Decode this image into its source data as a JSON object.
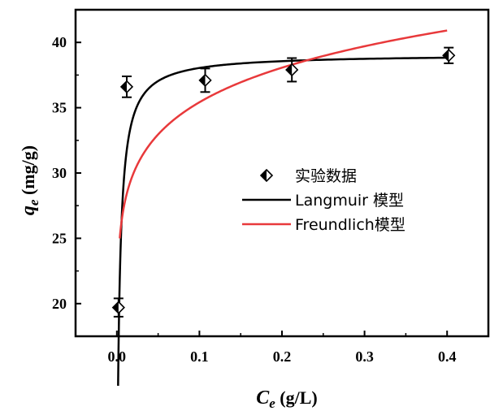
{
  "chart_data": {
    "type": "scatter",
    "xlabel": {
      "main": "C",
      "sub": "e",
      "unit": " (g/L)"
    },
    "ylabel": {
      "main": "q",
      "sub": "e",
      "unit": " (mg/g)"
    },
    "xlim": [
      -0.05,
      0.45
    ],
    "ylim": [
      17.5,
      42.5
    ],
    "xticks": [
      0.0,
      0.1,
      0.2,
      0.3,
      0.4
    ],
    "xtick_labels": [
      "0.0",
      "0.1",
      "0.2",
      "0.3",
      "0.4"
    ],
    "yticks": [
      20,
      25,
      30,
      35,
      40
    ],
    "ytick_labels": [
      "20",
      "25",
      "30",
      "35",
      "40"
    ],
    "grid": false,
    "legend_position": "center-right",
    "series": [
      {
        "name": "实验数据",
        "kind": "points",
        "color": "#000000",
        "marker": "half-filled-diamond",
        "x": [
          0.002,
          0.012,
          0.107,
          0.212,
          0.402
        ],
        "y": [
          19.7,
          36.6,
          37.1,
          37.9,
          39.0
        ],
        "err": [
          0.7,
          0.8,
          0.9,
          0.9,
          0.6
        ]
      },
      {
        "name": "Langmuir 模型",
        "kind": "line",
        "color": "#000000",
        "model": "langmuir",
        "params": {
          "qm": 39.1,
          "K": 360
        },
        "x_range": [
          0.0015,
          0.4
        ]
      },
      {
        "name": "Freundlich模型",
        "kind": "line",
        "color": "#e8393b",
        "model": "freundlich",
        "params": {
          "Kf": 45.0,
          "n": 0.104
        },
        "x_range": [
          0.0035,
          0.4
        ]
      }
    ]
  }
}
